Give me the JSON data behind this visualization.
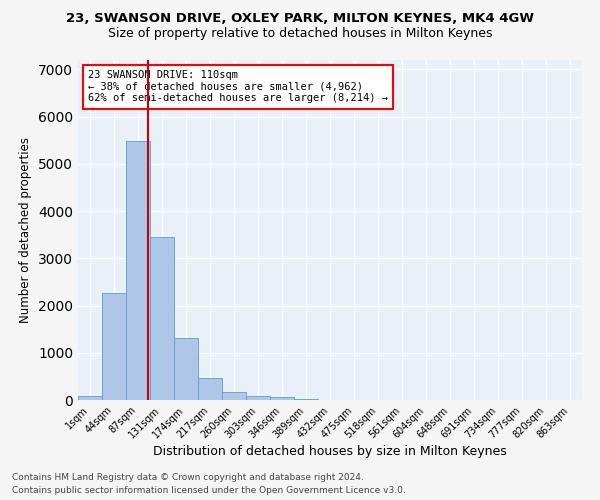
{
  "title_line1": "23, SWANSON DRIVE, OXLEY PARK, MILTON KEYNES, MK4 4GW",
  "title_line2": "Size of property relative to detached houses in Milton Keynes",
  "xlabel": "Distribution of detached houses by size in Milton Keynes",
  "ylabel": "Number of detached properties",
  "footer_line1": "Contains HM Land Registry data © Crown copyright and database right 2024.",
  "footer_line2": "Contains public sector information licensed under the Open Government Licence v3.0.",
  "bar_labels": [
    "1sqm",
    "44sqm",
    "87sqm",
    "131sqm",
    "174sqm",
    "217sqm",
    "260sqm",
    "303sqm",
    "346sqm",
    "389sqm",
    "432sqm",
    "475sqm",
    "518sqm",
    "561sqm",
    "604sqm",
    "648sqm",
    "691sqm",
    "734sqm",
    "777sqm",
    "820sqm",
    "863sqm"
  ],
  "bar_values": [
    80,
    2270,
    5480,
    3450,
    1320,
    460,
    160,
    90,
    60,
    30,
    0,
    0,
    0,
    0,
    0,
    0,
    0,
    0,
    0,
    0,
    0
  ],
  "bar_color": "#aec6e8",
  "bar_edge_color": "#5a9fd4",
  "vline_color": "#cc0000",
  "vline_position": 2.42,
  "ylim": [
    0,
    7200
  ],
  "yticks": [
    0,
    1000,
    2000,
    3000,
    4000,
    5000,
    6000,
    7000
  ],
  "annotation_text": "23 SWANSON DRIVE: 110sqm\n← 38% of detached houses are smaller (4,962)\n62% of semi-detached houses are larger (8,214) →",
  "background_color": "#e8f0f8",
  "grid_color": "#ffffff",
  "fig_bg_color": "#f5f5f5",
  "title1_fontsize": 9.5,
  "title2_fontsize": 9,
  "ylabel_fontsize": 8.5,
  "xlabel_fontsize": 9,
  "tick_fontsize": 7,
  "annot_fontsize": 7.5,
  "footer_fontsize": 6.5
}
